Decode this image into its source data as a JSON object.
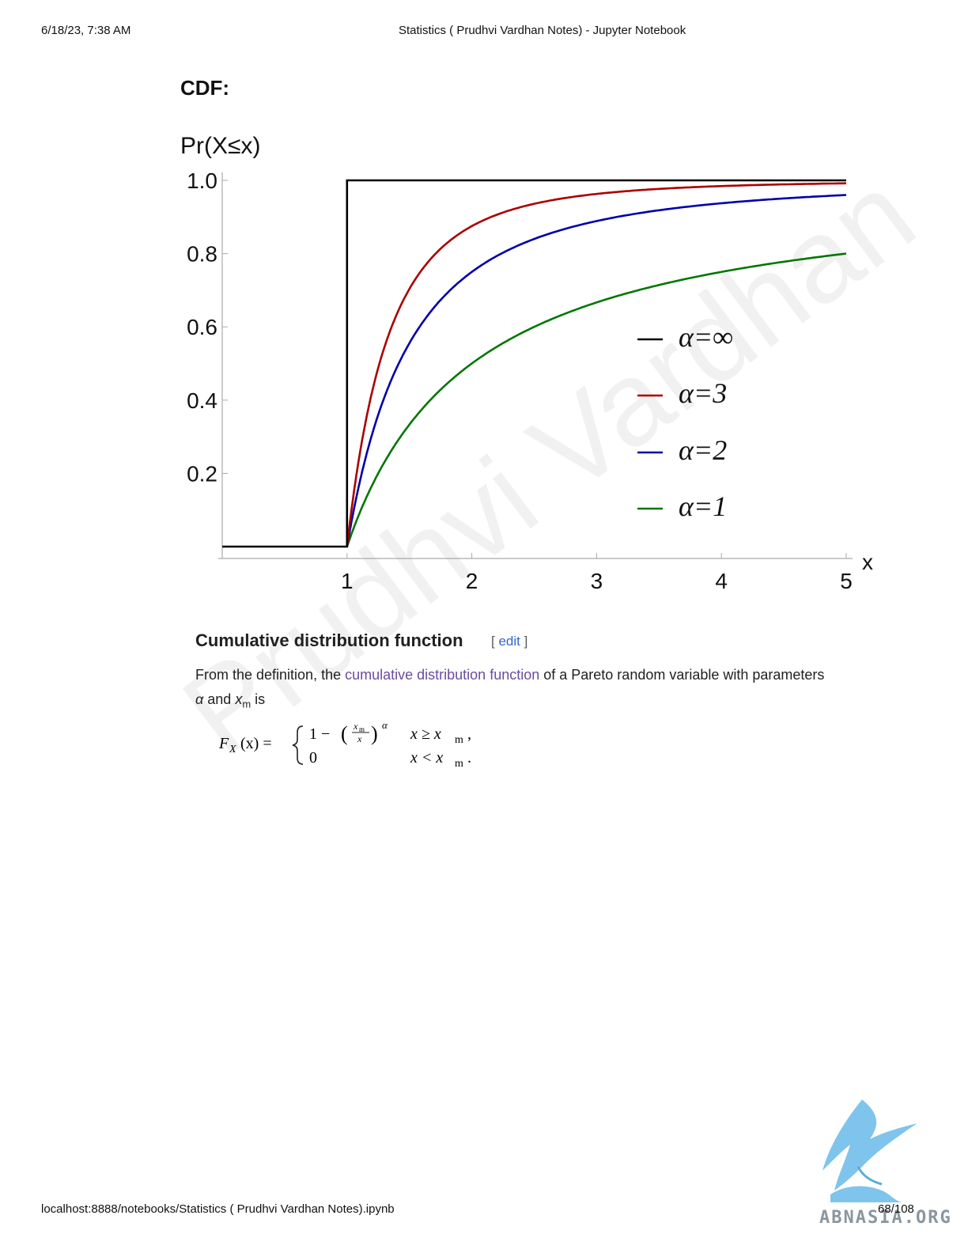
{
  "header": {
    "date": "6/18/23, 7:38 AM",
    "title": "Statistics ( Prudhvi Vardhan Notes) - Jupyter Notebook"
  },
  "cdf_heading": "CDF:",
  "chart_data": {
    "type": "line",
    "ylabel": "Pr(X≤x)",
    "xlabel": "x",
    "xlim": [
      0,
      5
    ],
    "ylim": [
      0,
      1.0
    ],
    "x_ticks": [
      "1",
      "2",
      "3",
      "4",
      "5"
    ],
    "y_ticks": [
      "0.2",
      "0.4",
      "0.6",
      "0.8",
      "1.0"
    ],
    "legend_position": "center-right",
    "series": [
      {
        "name": "α=∞",
        "alpha": "inf",
        "color": "#000000"
      },
      {
        "name": "α=3",
        "alpha": 3,
        "color": "#aa0000"
      },
      {
        "name": "α=2",
        "alpha": 2,
        "color": "#0000aa"
      },
      {
        "name": "α=1",
        "alpha": 1,
        "color": "#007700"
      }
    ],
    "x_m": 1
  },
  "section": {
    "title": "Cumulative distribution function",
    "edit_open": "[ ",
    "edit_label": "edit",
    "edit_close": " ]",
    "para_prefix": "From the definition, the ",
    "para_link": "cumulative distribution function",
    "para_suffix": " of a Pareto random variable with parameters",
    "para2_alpha": "α",
    "para2_and": " and ",
    "para2_x": "x",
    "para2_sub": "m",
    "para2_is": " is"
  },
  "formula": {
    "lhs": "F",
    "lhs_sub": "X",
    "lhs_arg": "(x) =",
    "case1_expr": "1 −",
    "case1_num": "x",
    "case1_num_sub": "m",
    "case1_den": "x",
    "case1_exp": "α",
    "case1_cond": "x ≥ x",
    "case1_cond_sub": "m",
    "case1_punct": ",",
    "case2_expr": "0",
    "case2_cond": "x < x",
    "case2_cond_sub": "m",
    "case2_punct": "."
  },
  "watermark": "Prudhvi Vardhan",
  "logo_text": "ABNASIA.ORG",
  "footer": {
    "url": "localhost:8888/notebooks/Statistics ( Prudhvi Vardhan Notes).ipynb",
    "page": "68/108"
  }
}
